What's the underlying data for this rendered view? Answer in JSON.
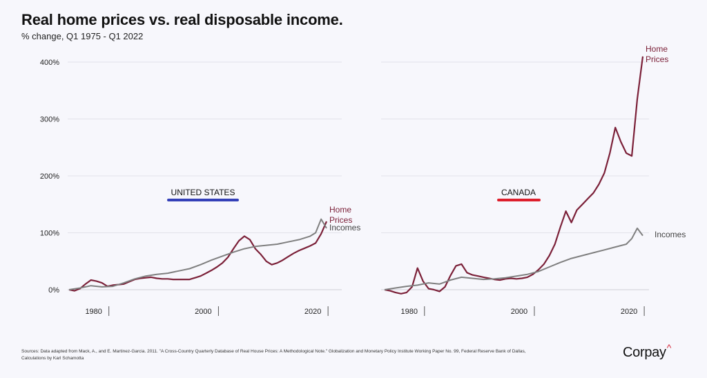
{
  "title": "Real home prices vs. real disposable income.",
  "subtitle": "% change, Q1 1975 - Q1 2022",
  "source": "Sources: Data adapted from Mack, A., and E. Martinez-Garcia. 2011. \"A Cross-Country Quarterly Database of Real House Prices: A Methodological Note.\" Globalization and Monetary Policy Institute Working Paper No. 99, Federal Reserve Bank of Dallas, Calculations by Karl Schamotta",
  "brand": "Corpay",
  "colors": {
    "home_prices": "#7b2038",
    "incomes": "#7f7f7f",
    "us_accent": "#3440b8",
    "canada_accent": "#dd1f2c"
  },
  "chart_data": [
    {
      "type": "line",
      "label": "UNITED STATES",
      "ylim": [
        0,
        400
      ],
      "yticks": [
        "0%",
        "100%",
        "200%",
        "300%",
        "400%"
      ],
      "xticks": [
        "1980",
        "2000",
        "2020"
      ],
      "xlim": [
        1975,
        2022
      ],
      "grid": true,
      "series": [
        {
          "name": "Home Prices",
          "points": [
            [
              1975,
              0
            ],
            [
              1976,
              -2
            ],
            [
              1977,
              2
            ],
            [
              1978,
              10
            ],
            [
              1979,
              17
            ],
            [
              1980,
              15
            ],
            [
              1981,
              12
            ],
            [
              1982,
              6
            ],
            [
              1983,
              8
            ],
            [
              1984,
              9
            ],
            [
              1985,
              10
            ],
            [
              1986,
              14
            ],
            [
              1987,
              18
            ],
            [
              1988,
              20
            ],
            [
              1989,
              21
            ],
            [
              1990,
              22
            ],
            [
              1991,
              20
            ],
            [
              1992,
              19
            ],
            [
              1993,
              19
            ],
            [
              1994,
              18
            ],
            [
              1995,
              18
            ],
            [
              1996,
              18
            ],
            [
              1997,
              18
            ],
            [
              1998,
              21
            ],
            [
              1999,
              24
            ],
            [
              2000,
              29
            ],
            [
              2001,
              34
            ],
            [
              2002,
              40
            ],
            [
              2003,
              47
            ],
            [
              2004,
              57
            ],
            [
              2005,
              72
            ],
            [
              2006,
              86
            ],
            [
              2007,
              94
            ],
            [
              2008,
              88
            ],
            [
              2009,
              72
            ],
            [
              2010,
              62
            ],
            [
              2011,
              50
            ],
            [
              2012,
              44
            ],
            [
              2013,
              47
            ],
            [
              2014,
              52
            ],
            [
              2015,
              58
            ],
            [
              2016,
              64
            ],
            [
              2017,
              69
            ],
            [
              2018,
              73
            ],
            [
              2019,
              77
            ],
            [
              2020,
              82
            ],
            [
              2021,
              98
            ],
            [
              2022,
              120
            ]
          ]
        },
        {
          "name": "Incomes",
          "points": [
            [
              1975,
              0
            ],
            [
              1977,
              3
            ],
            [
              1979,
              7
            ],
            [
              1981,
              5
            ],
            [
              1983,
              6
            ],
            [
              1985,
              12
            ],
            [
              1987,
              19
            ],
            [
              1989,
              24
            ],
            [
              1991,
              27
            ],
            [
              1993,
              29
            ],
            [
              1995,
              33
            ],
            [
              1997,
              37
            ],
            [
              1999,
              44
            ],
            [
              2001,
              52
            ],
            [
              2003,
              59
            ],
            [
              2005,
              66
            ],
            [
              2007,
              72
            ],
            [
              2009,
              76
            ],
            [
              2011,
              78
            ],
            [
              2013,
              80
            ],
            [
              2015,
              84
            ],
            [
              2017,
              88
            ],
            [
              2019,
              94
            ],
            [
              2020,
              100
            ],
            [
              2021,
              124
            ],
            [
              2022,
              108
            ]
          ]
        }
      ]
    },
    {
      "type": "line",
      "label": "CANADA",
      "ylim": [
        0,
        400
      ],
      "yticks": [
        "0%",
        "100%",
        "200%",
        "300%",
        "400%"
      ],
      "xticks": [
        "1980",
        "2000",
        "2020"
      ],
      "xlim": [
        1975,
        2022
      ],
      "grid": true,
      "series": [
        {
          "name": "Home Prices",
          "points": [
            [
              1975,
              0
            ],
            [
              1976,
              -2
            ],
            [
              1977,
              -5
            ],
            [
              1978,
              -7
            ],
            [
              1979,
              -5
            ],
            [
              1980,
              5
            ],
            [
              1981,
              38
            ],
            [
              1982,
              15
            ],
            [
              1983,
              2
            ],
            [
              1984,
              0
            ],
            [
              1985,
              -3
            ],
            [
              1986,
              5
            ],
            [
              1987,
              25
            ],
            [
              1988,
              42
            ],
            [
              1989,
              45
            ],
            [
              1990,
              30
            ],
            [
              1991,
              26
            ],
            [
              1992,
              24
            ],
            [
              1993,
              22
            ],
            [
              1994,
              20
            ],
            [
              1995,
              18
            ],
            [
              1996,
              17
            ],
            [
              1997,
              19
            ],
            [
              1998,
              20
            ],
            [
              1999,
              19
            ],
            [
              2000,
              20
            ],
            [
              2001,
              22
            ],
            [
              2002,
              27
            ],
            [
              2003,
              35
            ],
            [
              2004,
              45
            ],
            [
              2005,
              60
            ],
            [
              2006,
              80
            ],
            [
              2007,
              110
            ],
            [
              2008,
              138
            ],
            [
              2009,
              118
            ],
            [
              2010,
              140
            ],
            [
              2011,
              150
            ],
            [
              2012,
              160
            ],
            [
              2013,
              170
            ],
            [
              2014,
              185
            ],
            [
              2015,
              205
            ],
            [
              2016,
              240
            ],
            [
              2017,
              285
            ],
            [
              2018,
              260
            ],
            [
              2019,
              240
            ],
            [
              2020,
              235
            ],
            [
              2021,
              335
            ],
            [
              2022,
              410
            ]
          ]
        },
        {
          "name": "Incomes",
          "points": [
            [
              1975,
              0
            ],
            [
              1977,
              3
            ],
            [
              1979,
              6
            ],
            [
              1981,
              8
            ],
            [
              1983,
              12
            ],
            [
              1985,
              10
            ],
            [
              1987,
              17
            ],
            [
              1989,
              22
            ],
            [
              1991,
              20
            ],
            [
              1993,
              18
            ],
            [
              1995,
              19
            ],
            [
              1997,
              21
            ],
            [
              1999,
              24
            ],
            [
              2001,
              27
            ],
            [
              2003,
              32
            ],
            [
              2005,
              40
            ],
            [
              2007,
              48
            ],
            [
              2009,
              55
            ],
            [
              2011,
              60
            ],
            [
              2013,
              65
            ],
            [
              2015,
              70
            ],
            [
              2017,
              75
            ],
            [
              2019,
              80
            ],
            [
              2020,
              90
            ],
            [
              2021,
              108
            ],
            [
              2022,
              95
            ]
          ]
        }
      ]
    }
  ]
}
